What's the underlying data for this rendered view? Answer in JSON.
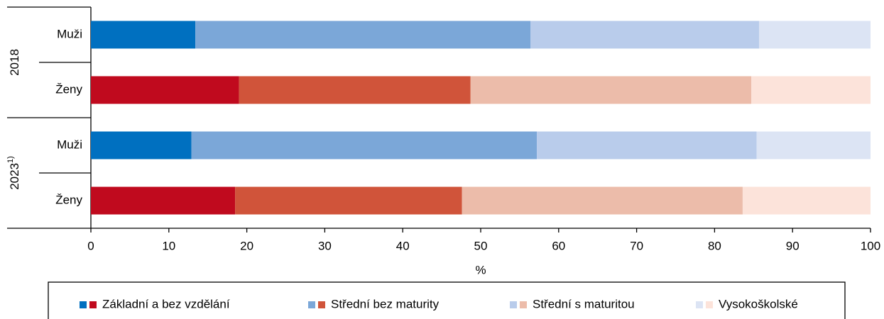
{
  "chart_data": {
    "type": "stacked_bar_horizontal",
    "groups": [
      {
        "label": "2018",
        "categories": [
          "Muži",
          "Ženy"
        ]
      },
      {
        "label": "2023",
        "note": "1)",
        "categories": [
          "Muži",
          "Ženy"
        ]
      }
    ],
    "series": [
      {
        "name": "Základní a bez vzdělání",
        "colors": [
          "#0070c0",
          "#c00a1e",
          "#0070c0",
          "#c00a1e"
        ],
        "values": [
          13.4,
          19.0,
          12.9,
          18.5
        ]
      },
      {
        "name": "Střední bez maturity",
        "colors": [
          "#7ba7d8",
          "#d0543a",
          "#7ba7d8",
          "#d0543a"
        ],
        "values": [
          43.0,
          29.7,
          44.3,
          29.1
        ]
      },
      {
        "name": "Střední s maturitou",
        "colors": [
          "#b9cceb",
          "#ecbcaa",
          "#b9cceb",
          "#ecbcaa"
        ],
        "values": [
          29.3,
          36.0,
          28.2,
          36.0
        ]
      },
      {
        "name": "Vysokoškolské",
        "colors": [
          "#dce4f4",
          "#fce3da",
          "#dce4f4",
          "#fce3da"
        ],
        "values": [
          14.3,
          15.3,
          14.6,
          16.4
        ]
      }
    ],
    "xlabel": "%",
    "xlim": [
      0,
      100
    ],
    "xticks": [
      0,
      10,
      20,
      30,
      40,
      50,
      60,
      70,
      80,
      90,
      100
    ]
  }
}
